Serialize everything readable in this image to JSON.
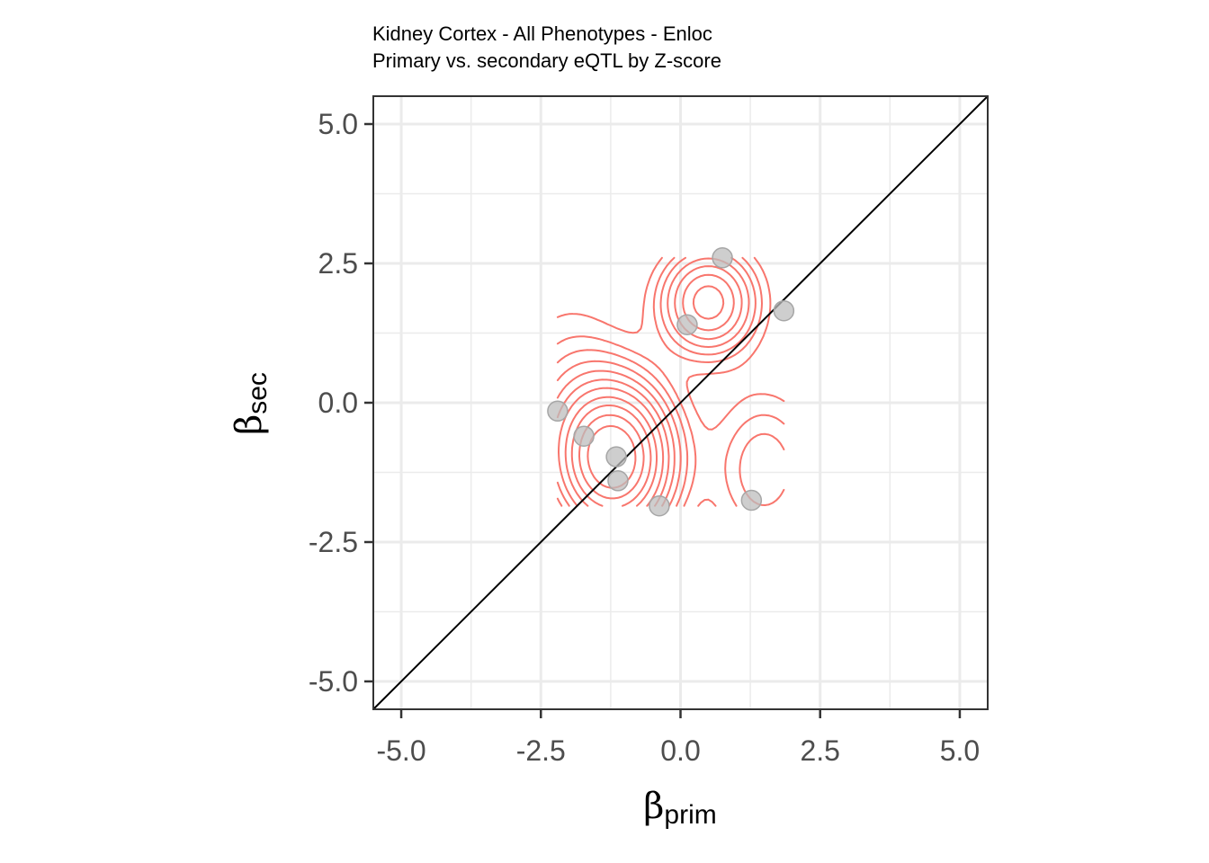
{
  "chart_data": {
    "type": "scatter",
    "title": "Kidney Cortex - All Phenotypes - Enloc",
    "subtitle": "Primary vs. secondary eQTL by Z-score",
    "xlabel": {
      "symbol": "β",
      "subscript": "prim"
    },
    "ylabel": {
      "symbol": "β",
      "subscript": "sec"
    },
    "xlim": [
      -5.5,
      5.5
    ],
    "ylim": [
      -5.5,
      5.5
    ],
    "x_ticks": [
      -5.0,
      -2.5,
      0.0,
      2.5,
      5.0
    ],
    "y_ticks": [
      -5.0,
      -2.5,
      0.0,
      2.5,
      5.0
    ],
    "x_tick_labels": [
      "-5.0",
      "-2.5",
      "0.0",
      "2.5",
      "5.0"
    ],
    "y_tick_labels": [
      "-5.0",
      "-2.5",
      "0.0",
      "2.5",
      "5.0"
    ],
    "grid": true,
    "identity_line": true,
    "points": [
      {
        "x": -2.2,
        "y": -0.15
      },
      {
        "x": -1.73,
        "y": -0.6
      },
      {
        "x": -1.15,
        "y": -0.97
      },
      {
        "x": -1.12,
        "y": -1.4
      },
      {
        "x": -0.38,
        "y": -1.85
      },
      {
        "x": 0.12,
        "y": 1.4
      },
      {
        "x": 0.75,
        "y": 2.6
      },
      {
        "x": 1.85,
        "y": 1.65
      },
      {
        "x": 1.27,
        "y": -1.75
      }
    ],
    "density_contours": {
      "color": "#f8766d",
      "x_range": [
        -2.2,
        1.85
      ],
      "y_range": [
        -1.85,
        2.6
      ],
      "peak_low": {
        "x": -1.2,
        "y": -1.0
      },
      "peak_high": {
        "x": 0.5,
        "y": 1.8
      }
    },
    "colors": {
      "points": "#bebebe",
      "point_stroke": "#a6a6a6",
      "contour": "#f8766d",
      "grid": "#ebebeb",
      "panel_border": "#333333"
    }
  }
}
